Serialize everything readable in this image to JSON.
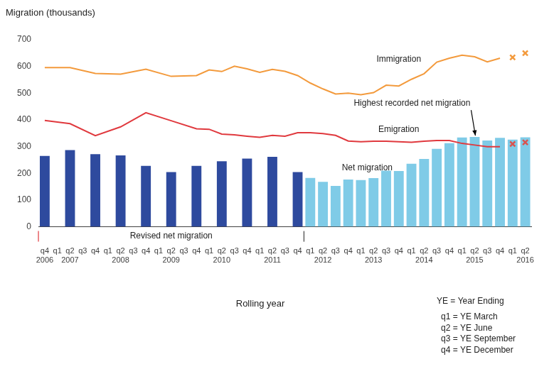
{
  "chart_data": {
    "type": "bar",
    "y_label": "Migration (thousands)",
    "x_label": "Rolling year",
    "categories": [
      [
        "q4",
        "2006"
      ],
      [
        "q1"
      ],
      [
        "q2",
        "2007"
      ],
      [
        "q3"
      ],
      [
        "q4"
      ],
      [
        "q1"
      ],
      [
        "q2",
        "2008"
      ],
      [
        "q3"
      ],
      [
        "q4"
      ],
      [
        "q1"
      ],
      [
        "q2",
        "2009"
      ],
      [
        "q3"
      ],
      [
        "q4"
      ],
      [
        "q1"
      ],
      [
        "q2",
        "2010"
      ],
      [
        "q3"
      ],
      [
        "q4"
      ],
      [
        "q1"
      ],
      [
        "q2",
        "2011"
      ],
      [
        "q3"
      ],
      [
        "q4"
      ],
      [
        "q1"
      ],
      [
        "q2",
        "2012"
      ],
      [
        "q3"
      ],
      [
        "q4"
      ],
      [
        "q1"
      ],
      [
        "q2",
        "2013"
      ],
      [
        "q3"
      ],
      [
        "q4"
      ],
      [
        "q1"
      ],
      [
        "q2",
        "2014"
      ],
      [
        "q3"
      ],
      [
        "q4"
      ],
      [
        "q1"
      ],
      [
        "q2",
        "2015"
      ],
      [
        "q3"
      ],
      [
        "q4"
      ],
      [
        "q1"
      ],
      [
        "q2",
        "2016"
      ]
    ],
    "series": [
      {
        "name": "Net migration",
        "type": "bar",
        "colors": [
          "#2e4a9e",
          "#2e4a9e",
          "#2e4a9e",
          "#2e4a9e",
          "#2e4a9e",
          "#2e4a9e",
          "#2e4a9e",
          "#2e4a9e",
          "#2e4a9e",
          "#2e4a9e",
          "#2e4a9e",
          "#2e4a9e",
          "#2e4a9e",
          "#2e4a9e",
          "#2e4a9e",
          "#2e4a9e",
          "#2e4a9e",
          "#2e4a9e",
          "#2e4a9e",
          "#2e4a9e",
          "#2e4a9e",
          "#7fcbe7",
          "#7fcbe7",
          "#7fcbe7",
          "#7fcbe7",
          "#7fcbe7",
          "#7fcbe7",
          "#7fcbe7",
          "#7fcbe7",
          "#7fcbe7",
          "#7fcbe7",
          "#7fcbe7",
          "#7fcbe7",
          "#7fcbe7",
          "#7fcbe7",
          "#7fcbe7",
          "#7fcbe7",
          "#7fcbe7",
          "#7fcbe7"
        ],
        "values": [
          265,
          null,
          287,
          null,
          272,
          null,
          267,
          null,
          228,
          null,
          205,
          null,
          228,
          null,
          245,
          null,
          255,
          null,
          262,
          null,
          205,
          183,
          168,
          153,
          177,
          175,
          182,
          210,
          209,
          236,
          254,
          292,
          313,
          334,
          336,
          323,
          333,
          326,
          335
        ]
      },
      {
        "name": "Immigration",
        "type": "line",
        "color": "#f39a3c",
        "marker": "none",
        "line_style": "solid",
        "values": [
          596,
          null,
          596,
          null,
          574,
          null,
          571,
          null,
          590,
          null,
          563,
          null,
          566,
          587,
          581,
          601,
          591,
          578,
          589,
          582,
          566,
          538,
          516,
          497,
          500,
          494,
          502,
          530,
          527,
          552,
          573,
          616,
          631,
          642,
          636,
          617,
          631,
          null,
          null
        ]
      },
      {
        "name": "Emigration",
        "type": "line",
        "color": "#e0393e",
        "marker": "none",
        "line_style": "solid",
        "values": [
          398,
          null,
          386,
          null,
          341,
          null,
          374,
          null,
          427,
          null,
          397,
          null,
          367,
          365,
          347,
          344,
          339,
          335,
          342,
          339,
          352,
          352,
          349,
          342,
          321,
          318,
          320,
          320,
          318,
          316,
          320,
          323,
          323,
          312,
          306,
          300,
          300,
          null,
          null
        ]
      },
      {
        "name": "Immigration",
        "type": "line",
        "color": "#f39a3c",
        "marker": "cross",
        "line_style": "none",
        "values": [
          null,
          null,
          null,
          null,
          null,
          null,
          null,
          null,
          null,
          null,
          null,
          null,
          null,
          null,
          null,
          null,
          null,
          null,
          null,
          null,
          null,
          null,
          null,
          null,
          null,
          null,
          null,
          null,
          null,
          null,
          null,
          null,
          null,
          null,
          null,
          null,
          null,
          634,
          650
        ]
      },
      {
        "name": "Emigration",
        "type": "line",
        "color": "#d9534f",
        "marker": "cross",
        "line_style": "none",
        "values": [
          null,
          null,
          null,
          null,
          null,
          null,
          null,
          null,
          null,
          null,
          null,
          null,
          null,
          null,
          null,
          null,
          null,
          null,
          null,
          null,
          null,
          null,
          null,
          null,
          null,
          null,
          null,
          null,
          null,
          null,
          null,
          null,
          null,
          null,
          null,
          null,
          null,
          310,
          316
        ]
      }
    ],
    "ylim": [
      0,
      700
    ],
    "yticks": [
      0,
      100,
      200,
      300,
      400,
      500,
      600,
      700
    ],
    "grid": false,
    "annotations": [
      "Highest recorded net migration",
      "Revised net migration"
    ],
    "notes": [
      "YE = Year Ending",
      "q1 = YE March",
      "q2 = YE June",
      "q3 = YE September",
      "q4 = YE December"
    ]
  }
}
